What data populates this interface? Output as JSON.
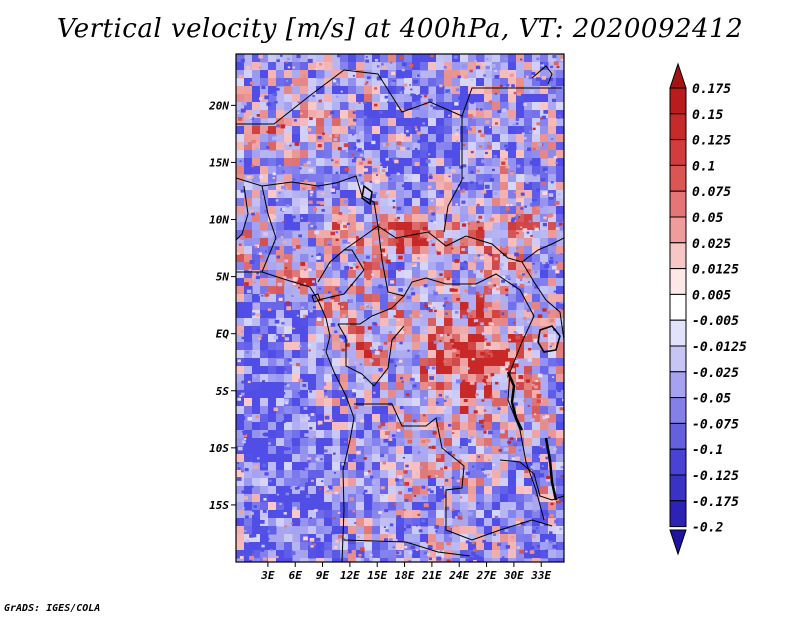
{
  "title": "Vertical velocity [m/s] at 400hPa, VT: 2020092412",
  "credit": "GrADS: IGES/COLA",
  "map": {
    "lon_range": [
      -0.5,
      35.5
    ],
    "lat_range": [
      -20,
      24.5
    ],
    "x_ticks": [
      {
        "lon": 3,
        "label": "3E"
      },
      {
        "lon": 6,
        "label": "6E"
      },
      {
        "lon": 9,
        "label": "9E"
      },
      {
        "lon": 12,
        "label": "12E"
      },
      {
        "lon": 15,
        "label": "15E"
      },
      {
        "lon": 18,
        "label": "18E"
      },
      {
        "lon": 21,
        "label": "21E"
      },
      {
        "lon": 24,
        "label": "24E"
      },
      {
        "lon": 27,
        "label": "27E"
      },
      {
        "lon": 30,
        "label": "30E"
      },
      {
        "lon": 33,
        "label": "33E"
      }
    ],
    "y_ticks": [
      {
        "lat": 20,
        "label": "20N"
      },
      {
        "lat": 15,
        "label": "15N"
      },
      {
        "lat": 10,
        "label": "10N"
      },
      {
        "lat": 5,
        "label": "5N"
      },
      {
        "lat": 0,
        "label": "EQ"
      },
      {
        "lat": -5,
        "label": "5S"
      },
      {
        "lat": -10,
        "label": "10S"
      },
      {
        "lat": -15,
        "label": "15S"
      }
    ]
  },
  "colorbar": {
    "labels": [
      "0.175",
      "0.15",
      "0.125",
      "0.1",
      "0.075",
      "0.05",
      "0.025",
      "0.0125",
      "0.005",
      "-0.005",
      "-0.0125",
      "-0.025",
      "-0.05",
      "-0.075",
      "-0.1",
      "-0.125",
      "-0.175",
      "-0.2"
    ],
    "colors": [
      "#a51414",
      "#b91c1c",
      "#c62a2a",
      "#d23c3c",
      "#dc5555",
      "#e67575",
      "#ef9c9c",
      "#f7c6c6",
      "#fde8e8",
      "#ffffff",
      "#e3e2fb",
      "#c7c5f6",
      "#a6a2f0",
      "#8580e8",
      "#6560de",
      "#4a42d2",
      "#3a32c4",
      "#2c22b4",
      "#1e14a2"
    ]
  }
}
